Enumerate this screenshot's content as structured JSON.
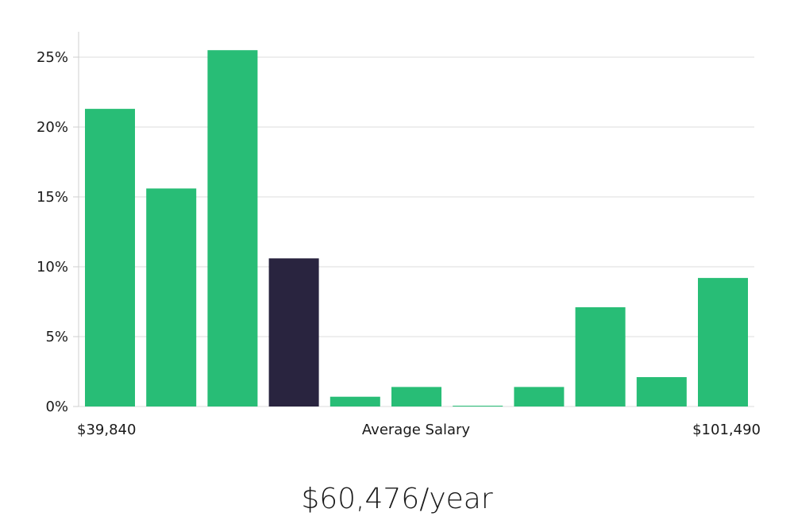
{
  "chart_data": {
    "type": "bar",
    "xlabel": "Average Salary",
    "x_min_label": "$39,840",
    "x_max_label": "$101,490",
    "ylim": [
      0,
      27
    ],
    "yticks": [
      0,
      5,
      10,
      15,
      20,
      25
    ],
    "ytick_labels": [
      "0%",
      "5%",
      "10%",
      "15%",
      "20%",
      "25%"
    ],
    "values": [
      21.3,
      15.6,
      25.5,
      10.6,
      0.7,
      1.4,
      0.05,
      1.4,
      7.1,
      2.1,
      9.2
    ],
    "highlight_index": 3,
    "colors": {
      "bar": "#28bd76",
      "highlight": "#29243f"
    },
    "grid": true
  },
  "summary": "$60,476/year"
}
